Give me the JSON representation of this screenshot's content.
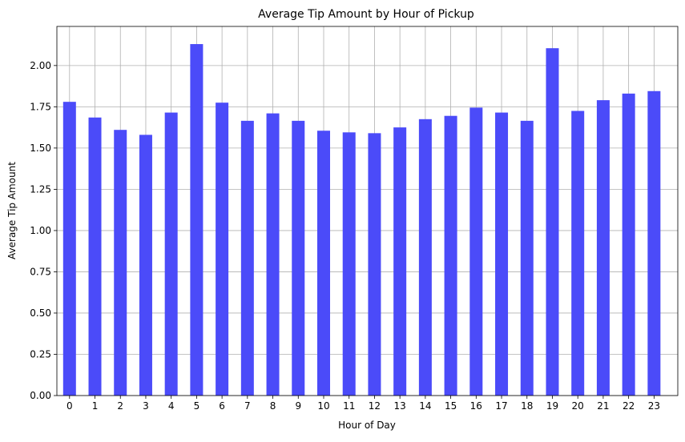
{
  "chart_data": {
    "type": "bar",
    "title": "Average Tip Amount by Hour of Pickup",
    "xlabel": "Hour of Day",
    "ylabel": "Average Tip Amount",
    "categories": [
      "0",
      "1",
      "2",
      "3",
      "4",
      "5",
      "6",
      "7",
      "8",
      "9",
      "10",
      "11",
      "12",
      "13",
      "14",
      "15",
      "16",
      "17",
      "18",
      "19",
      "20",
      "21",
      "22",
      "23"
    ],
    "values": [
      1.78,
      1.685,
      1.61,
      1.58,
      1.715,
      2.13,
      1.775,
      1.665,
      1.71,
      1.665,
      1.605,
      1.595,
      1.59,
      1.625,
      1.675,
      1.695,
      1.745,
      1.715,
      1.665,
      2.105,
      1.725,
      1.79,
      1.83,
      1.845
    ],
    "ylim": [
      0,
      2.237
    ],
    "yticks": [
      "0.00",
      "0.25",
      "0.50",
      "0.75",
      "1.00",
      "1.25",
      "1.50",
      "1.75",
      "2.00"
    ],
    "grid": true,
    "legend": "none",
    "bar_color": "#4b4bf9"
  }
}
